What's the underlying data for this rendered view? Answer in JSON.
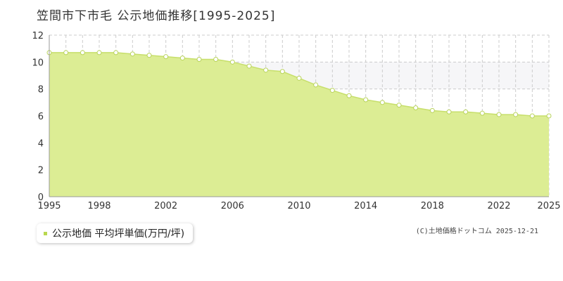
{
  "title": "笠間市下市毛 公示地価推移[1995-2025]",
  "legend": {
    "label": "公示地価 平均坪単価(万円/坪)"
  },
  "copyright": "(C)土地価格ドットコム 2025-12-21",
  "colors": {
    "area_fill": "#dced94",
    "line": "#c7df6b",
    "marker_fill": "#ffffff",
    "marker_stroke": "#b8d35a",
    "legend_marker": "#b9d84f",
    "grid": "#cccccc",
    "axis": "#999999",
    "band": "#f6f6f8"
  },
  "chart_data": {
    "type": "area",
    "x": [
      1995,
      1996,
      1997,
      1998,
      1999,
      2000,
      2001,
      2002,
      2003,
      2004,
      2005,
      2006,
      2007,
      2008,
      2009,
      2010,
      2011,
      2012,
      2013,
      2014,
      2015,
      2016,
      2017,
      2018,
      2019,
      2020,
      2021,
      2022,
      2023,
      2024,
      2025
    ],
    "series": [
      {
        "name": "公示地価 平均坪単価(万円/坪)",
        "values": [
          10.7,
          10.7,
          10.7,
          10.7,
          10.7,
          10.6,
          10.5,
          10.4,
          10.3,
          10.2,
          10.2,
          10.0,
          9.7,
          9.4,
          9.3,
          8.8,
          8.3,
          7.9,
          7.5,
          7.2,
          7.0,
          6.8,
          6.6,
          6.4,
          6.3,
          6.3,
          6.2,
          6.1,
          6.1,
          6.0,
          6.0
        ]
      }
    ],
    "xticks": [
      "1995",
      "1998",
      "2002",
      "2006",
      "2010",
      "2014",
      "2018",
      "2022",
      "2025"
    ],
    "yticks": [
      "0",
      "2",
      "4",
      "6",
      "8",
      "10",
      "12"
    ],
    "ylim": [
      0,
      12
    ],
    "xlim": [
      1995,
      2025
    ],
    "grid": true
  }
}
